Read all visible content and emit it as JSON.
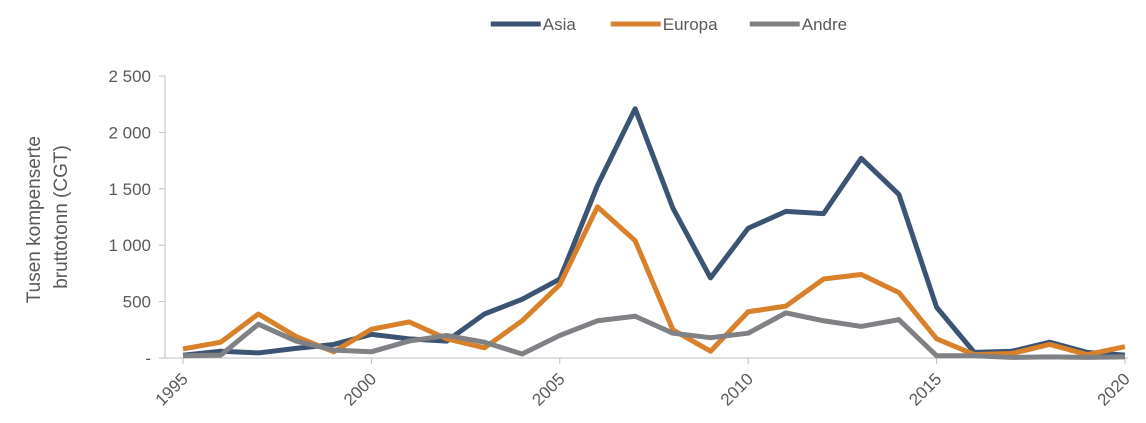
{
  "chart_data": {
    "type": "line",
    "ylabel": [
      "Tusen kompenserte",
      "bruttotonn (CGT)"
    ],
    "x": [
      1995,
      1996,
      1997,
      1998,
      1999,
      2000,
      2001,
      2002,
      2003,
      2004,
      2005,
      2006,
      2007,
      2008,
      2009,
      2010,
      2011,
      2012,
      2013,
      2014,
      2015,
      2016,
      2017,
      2018,
      2019,
      2020
    ],
    "series": [
      {
        "name": "Asia",
        "color": "#3c5473",
        "values": [
          25,
          60,
          45,
          85,
          120,
          210,
          170,
          150,
          390,
          520,
          700,
          1530,
          2210,
          1330,
          710,
          1150,
          1300,
          1280,
          1770,
          1450,
          450,
          50,
          60,
          140,
          50,
          25
        ]
      },
      {
        "name": "Europa",
        "color": "#d9812a",
        "values": [
          80,
          140,
          390,
          190,
          55,
          255,
          320,
          170,
          90,
          330,
          650,
          1340,
          1040,
          250,
          60,
          410,
          460,
          700,
          740,
          580,
          170,
          30,
          40,
          120,
          30,
          100
        ]
      },
      {
        "name": "Andre",
        "color": "#7f8184",
        "values": [
          20,
          25,
          300,
          150,
          70,
          55,
          150,
          200,
          140,
          35,
          200,
          330,
          370,
          220,
          180,
          220,
          400,
          330,
          280,
          340,
          20,
          20,
          5,
          10,
          5,
          10
        ]
      }
    ],
    "xlim": [
      1995,
      2020
    ],
    "xticks": [
      1995,
      2000,
      2005,
      2010,
      2015,
      2020
    ],
    "ylim": [
      0,
      2500
    ],
    "yticks": [
      {
        "value": 0,
        "label": "-"
      },
      500,
      {
        "value": 1000,
        "label": "1 000"
      },
      {
        "value": 1500,
        "label": "1 500"
      },
      {
        "value": 2000,
        "label": "2 000"
      },
      {
        "value": 2500,
        "label": "2 500"
      }
    ],
    "legend": "top",
    "grid": false
  }
}
